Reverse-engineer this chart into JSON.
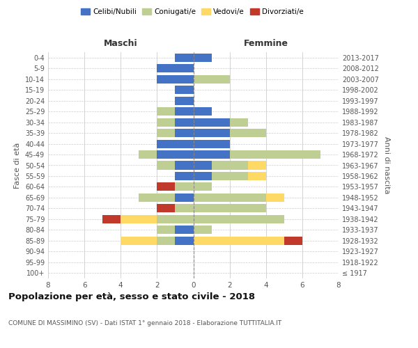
{
  "age_groups": [
    "100+",
    "95-99",
    "90-94",
    "85-89",
    "80-84",
    "75-79",
    "70-74",
    "65-69",
    "60-64",
    "55-59",
    "50-54",
    "45-49",
    "40-44",
    "35-39",
    "30-34",
    "25-29",
    "20-24",
    "15-19",
    "10-14",
    "5-9",
    "0-4"
  ],
  "birth_years": [
    "≤ 1917",
    "1918-1922",
    "1923-1927",
    "1928-1932",
    "1933-1937",
    "1938-1942",
    "1943-1947",
    "1948-1952",
    "1953-1957",
    "1958-1962",
    "1963-1967",
    "1968-1972",
    "1973-1977",
    "1978-1982",
    "1983-1987",
    "1988-1992",
    "1993-1997",
    "1998-2002",
    "2003-2007",
    "2008-2012",
    "2013-2017"
  ],
  "maschi": {
    "celibi": [
      0,
      0,
      0,
      1,
      1,
      0,
      0,
      1,
      0,
      1,
      1,
      2,
      2,
      1,
      1,
      1,
      1,
      1,
      2,
      2,
      1
    ],
    "coniugati": [
      0,
      0,
      0,
      1,
      1,
      2,
      1,
      2,
      1,
      0,
      1,
      1,
      0,
      1,
      1,
      1,
      0,
      0,
      0,
      0,
      0
    ],
    "vedovi": [
      0,
      0,
      0,
      2,
      0,
      2,
      0,
      0,
      0,
      0,
      0,
      0,
      0,
      0,
      0,
      0,
      0,
      0,
      0,
      0,
      0
    ],
    "divorziati": [
      0,
      0,
      0,
      0,
      0,
      1,
      1,
      0,
      1,
      0,
      0,
      0,
      0,
      0,
      0,
      0,
      0,
      0,
      0,
      0,
      0
    ]
  },
  "femmine": {
    "nubili": [
      0,
      0,
      0,
      0,
      0,
      0,
      0,
      0,
      0,
      1,
      1,
      2,
      2,
      2,
      2,
      1,
      0,
      0,
      0,
      0,
      1
    ],
    "coniugate": [
      0,
      0,
      0,
      0,
      1,
      5,
      4,
      4,
      1,
      2,
      2,
      5,
      0,
      2,
      1,
      0,
      0,
      0,
      2,
      0,
      0
    ],
    "vedove": [
      0,
      0,
      0,
      5,
      0,
      0,
      0,
      1,
      0,
      1,
      1,
      0,
      0,
      0,
      0,
      0,
      0,
      0,
      0,
      0,
      0
    ],
    "divorziate": [
      0,
      0,
      0,
      1,
      0,
      0,
      0,
      0,
      0,
      0,
      0,
      0,
      0,
      0,
      0,
      0,
      0,
      0,
      0,
      0,
      0
    ]
  },
  "colors": {
    "celibi_nubili": "#4472C4",
    "coniugati": "#BFCE93",
    "vedovi": "#FFD966",
    "divorziati": "#C0392B"
  },
  "title": "Popolazione per età, sesso e stato civile - 2018",
  "subtitle": "COMUNE DI MASSIMINO (SV) - Dati ISTAT 1° gennaio 2018 - Elaborazione TUTTITALIA.IT",
  "label_maschi": "Maschi",
  "label_femmine": "Femmine",
  "ylabel_left": "Fasce di età",
  "ylabel_right": "Anni di nascita",
  "xlim": 8,
  "legend_labels": [
    "Celibi/Nubili",
    "Coniugati/e",
    "Vedovi/e",
    "Divorziati/e"
  ],
  "background_color": "#ffffff",
  "grid_color": "#cccccc"
}
